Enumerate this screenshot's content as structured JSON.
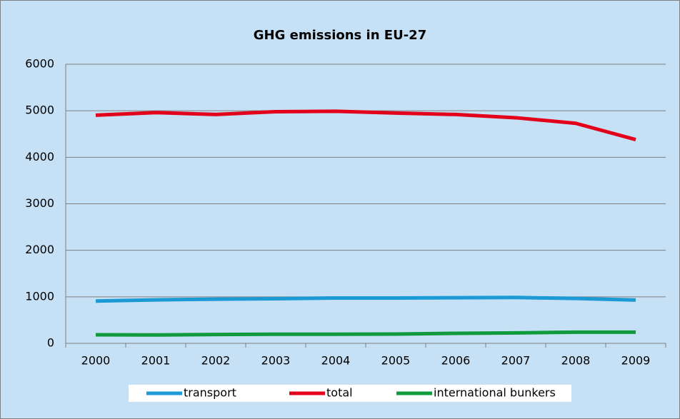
{
  "chart_data": {
    "type": "line",
    "title": "GHG emissions in EU-27",
    "categories": [
      "2000",
      "2001",
      "2002",
      "2003",
      "2004",
      "2005",
      "2006",
      "2007",
      "2008",
      "2009"
    ],
    "series": [
      {
        "name": "transport",
        "color": "#1b9ad6",
        "values": [
          910,
          935,
          950,
          960,
          975,
          975,
          980,
          985,
          965,
          930
        ]
      },
      {
        "name": "total",
        "color": "#e3001b",
        "values": [
          4905,
          4960,
          4920,
          4980,
          4990,
          4950,
          4920,
          4850,
          4730,
          4380
        ]
      },
      {
        "name": "international bunkers",
        "color": "#0f9a3c",
        "values": [
          185,
          180,
          190,
          195,
          195,
          200,
          215,
          225,
          240,
          240
        ]
      }
    ],
    "ylim": [
      0,
      6000
    ],
    "yticks": [
      0,
      1000,
      2000,
      3000,
      4000,
      5000,
      6000
    ],
    "grid": true,
    "legend": "bottom"
  }
}
